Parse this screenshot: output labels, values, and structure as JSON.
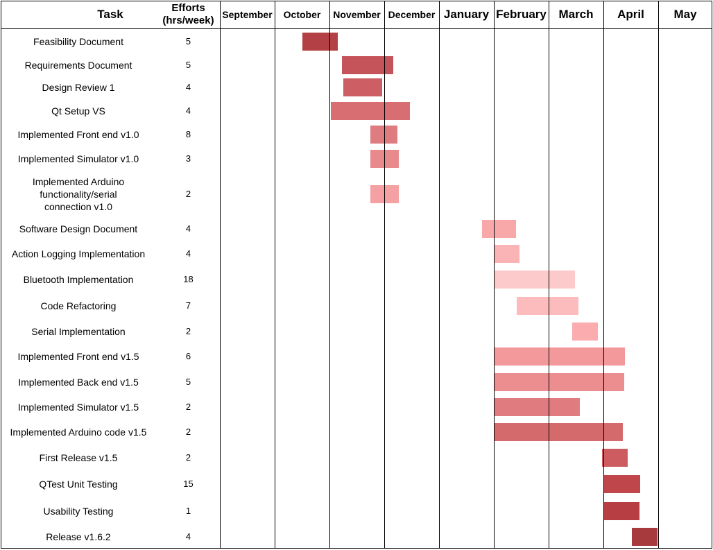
{
  "header": {
    "task": "Task",
    "efforts_line1": "Efforts",
    "efforts_line2": "(hrs/week)",
    "months": [
      "September",
      "October",
      "November",
      "December",
      "January",
      "February",
      "March",
      "April",
      "May"
    ]
  },
  "tasks": [
    {
      "name": "Feasibility Document",
      "effort": "5",
      "start": 1.5,
      "end": 2.15,
      "color": "#b34044"
    },
    {
      "name": "Requirements Document",
      "effort": "5",
      "start": 2.23,
      "end": 3.16,
      "color": "#c4545a"
    },
    {
      "name": "Design Review 1",
      "effort": "4",
      "start": 2.25,
      "end": 2.96,
      "color": "#cc5e64"
    },
    {
      "name": "Qt Setup VS",
      "effort": "4",
      "start": 2.03,
      "end": 3.47,
      "color": "#d86e72"
    },
    {
      "name": "Implemented Front end v1.0",
      "effort": "8",
      "start": 2.75,
      "end": 3.24,
      "color": "#de7c80"
    },
    {
      "name": "Implemented Simulator v1.0",
      "effort": "3",
      "start": 2.75,
      "end": 3.27,
      "color": "#e88a8c"
    },
    {
      "name": "Implemented Arduino functionality/serial connection v1.0",
      "effort": "2",
      "start": 2.75,
      "end": 3.27,
      "color": "#f5a0a2"
    },
    {
      "name": "Software Design Document",
      "effort": "4",
      "start": 4.79,
      "end": 5.4,
      "color": "#f9a8aa"
    },
    {
      "name": "Action Logging Implementation",
      "effort": "4",
      "start": 5.0,
      "end": 5.47,
      "color": "#fbb4b6"
    },
    {
      "name": "Bluetooth Implementation",
      "effort": "18",
      "start": 5.0,
      "end": 6.48,
      "color": "#fdcacc"
    },
    {
      "name": "Code Refactoring",
      "effort": "7",
      "start": 5.42,
      "end": 6.54,
      "color": "#fcbcbe"
    },
    {
      "name": "Serial Implementation",
      "effort": "2",
      "start": 6.43,
      "end": 6.9,
      "color": "#fbacae"
    },
    {
      "name": "Implemented Front end v1.5",
      "effort": "6",
      "start": 5.0,
      "end": 7.39,
      "color": "#f4999b"
    },
    {
      "name": "Implemented Back end v1.5",
      "effort": "5",
      "start": 5.0,
      "end": 7.38,
      "color": "#ec8d8f"
    },
    {
      "name": "Implemented Simulator v1.5",
      "effort": "2",
      "start": 5.0,
      "end": 6.57,
      "color": "#e07c7f"
    },
    {
      "name": "Implemented Arduino code v1.5",
      "effort": "2",
      "start": 5.0,
      "end": 7.35,
      "color": "#d56a6d"
    },
    {
      "name": "First Release v1.5",
      "effort": "2",
      "start": 6.97,
      "end": 7.44,
      "color": "#cc5c5f"
    },
    {
      "name": "QTest Unit Testing",
      "effort": "15",
      "start": 7.0,
      "end": 7.67,
      "color": "#bf474b"
    },
    {
      "name": "Usability Testing",
      "effort": "1",
      "start": 7.0,
      "end": 7.66,
      "color": "#b73e42"
    },
    {
      "name": "Release v1.6.2",
      "effort": "4",
      "start": 7.52,
      "end": 7.99,
      "color": "#a73a3c"
    }
  ]
}
